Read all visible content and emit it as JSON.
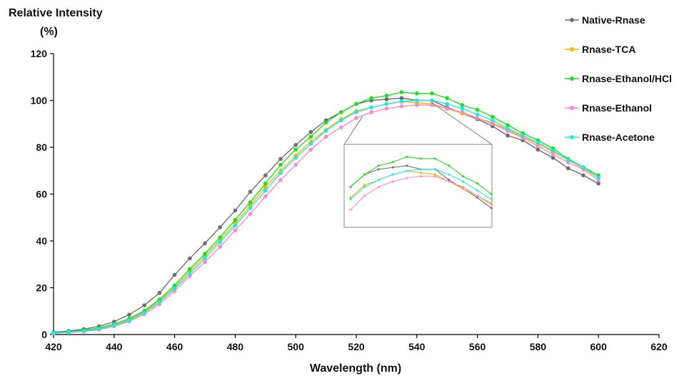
{
  "chart_data": {
    "type": "line",
    "ylabel_line1": "Relative Intensity",
    "ylabel_line2": "(%)",
    "xlabel": "Wavelength (nm)",
    "xlim": [
      420,
      620
    ],
    "ylim": [
      0,
      120
    ],
    "xticks": [
      420,
      440,
      460,
      480,
      500,
      520,
      540,
      560,
      580,
      600,
      620
    ],
    "yticks": [
      0,
      20,
      40,
      60,
      80,
      100,
      120
    ],
    "grid": false,
    "legend_position": "top-right",
    "inset": {
      "type": "zoom",
      "x_range": [
        515,
        565
      ]
    },
    "x": [
      420,
      425,
      430,
      435,
      440,
      445,
      450,
      455,
      460,
      465,
      470,
      475,
      480,
      485,
      490,
      495,
      500,
      505,
      510,
      515,
      520,
      525,
      530,
      535,
      540,
      545,
      550,
      555,
      560,
      565,
      570,
      575,
      580,
      585,
      590,
      595,
      600
    ],
    "series": [
      {
        "name": "Native-Rnase",
        "color": "#6e6e6e",
        "values": [
          1,
          1.5,
          2.3,
          3.5,
          5.5,
          8.5,
          12.5,
          17.8,
          25.5,
          32.5,
          39,
          45.8,
          53,
          61,
          68,
          75,
          81,
          86.5,
          91.5,
          95,
          98.5,
          100,
          100.5,
          101,
          100,
          100,
          97,
          94.5,
          92,
          89,
          85,
          83,
          79,
          75.5,
          71,
          68,
          64.5
        ]
      },
      {
        "name": "Rnase-TCA",
        "color": "#f5b800",
        "values": [
          0.7,
          1.1,
          1.6,
          2.5,
          4,
          6.3,
          9.7,
          14.5,
          20.2,
          27,
          33.5,
          40.5,
          47.5,
          55,
          63,
          70,
          76.5,
          82.5,
          87.5,
          92,
          95.5,
          97,
          98.5,
          99.5,
          99,
          98.5,
          96.5,
          94.5,
          92.5,
          90.5,
          87.5,
          84.5,
          81.5,
          78,
          74.5,
          71,
          67
        ]
      },
      {
        "name": "Rnase-Ethanol/HCl",
        "color": "#22dd22",
        "values": [
          0.8,
          1.2,
          1.8,
          2.8,
          4.5,
          6.8,
          10.2,
          15,
          21,
          28,
          34.5,
          41.5,
          49,
          56.5,
          64.5,
          72.5,
          79,
          84.5,
          90.5,
          95,
          98.5,
          101,
          102,
          103.5,
          103,
          103,
          101,
          98,
          96,
          93,
          89.5,
          86,
          83,
          79.5,
          75,
          71.5,
          68
        ]
      },
      {
        "name": "Rnase-Ethanol",
        "color": "#ff88c8",
        "values": [
          0.5,
          0.9,
          1.3,
          2.1,
          3.5,
          5.6,
          8.7,
          13,
          18.6,
          25,
          31,
          37.5,
          44.5,
          51.5,
          59,
          66,
          72.5,
          79,
          84.5,
          88.5,
          92.5,
          95,
          96.5,
          97.5,
          98,
          98,
          96.5,
          95,
          92.5,
          90,
          87,
          84,
          80.5,
          77,
          73.5,
          70.5,
          66
        ]
      },
      {
        "name": "Rnase-Acetone",
        "color": "#22e8e8",
        "values": [
          0.6,
          1,
          1.5,
          2.4,
          3.9,
          6,
          9.3,
          13.8,
          19.6,
          26,
          32.5,
          39.5,
          46.5,
          54,
          61.5,
          69,
          75.5,
          81.5,
          87,
          91.5,
          95,
          97,
          98.5,
          99.5,
          100,
          100,
          98.5,
          96.5,
          94,
          91.5,
          88,
          85,
          82,
          78.5,
          74.5,
          71.5,
          67
        ]
      }
    ]
  }
}
